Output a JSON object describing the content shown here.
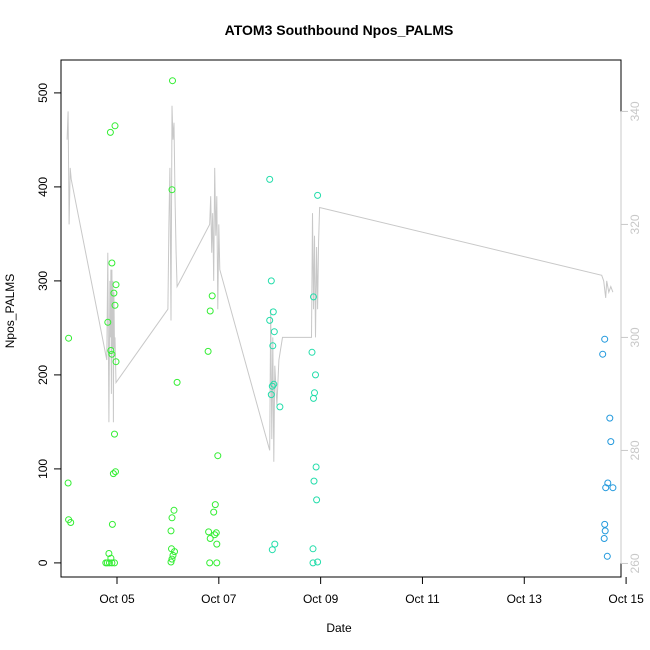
{
  "chart_data": {
    "type": "scatter",
    "title": "ATOM3 Southbound Npos_PALMS",
    "xlabel": "Date",
    "ylabel": "Npos_PALMS",
    "xlim": [
      3.9,
      14.9
    ],
    "ylim": [
      -15,
      535
    ],
    "y2lim": [
      257.6,
      349.1
    ],
    "x_ticks": [
      {
        "v": 5,
        "label": "Oct 05"
      },
      {
        "v": 7,
        "label": "Oct 07"
      },
      {
        "v": 9,
        "label": "Oct 09"
      },
      {
        "v": 11,
        "label": "Oct 11"
      },
      {
        "v": 13,
        "label": "Oct 13"
      },
      {
        "v": 15,
        "label": "Oct 15"
      }
    ],
    "y_ticks": [
      0,
      100,
      200,
      300,
      400,
      500
    ],
    "y2_ticks": [
      260,
      280,
      300,
      320,
      340
    ],
    "colors": {
      "points_green": "#33ee33",
      "points_teal": "#22ddaa",
      "points_blue": "#2299dd",
      "line": "#c8c8c8",
      "right_axis": "#c8c8c8"
    },
    "series": [
      {
        "color_key": "points_green",
        "points": [
          [
            4.05,
            239
          ],
          [
            4.04,
            85
          ],
          [
            4.05,
            46
          ],
          [
            4.09,
            43
          ],
          [
            4.78,
            0
          ],
          [
            4.81,
            0
          ],
          [
            4.84,
            10
          ],
          [
            4.85,
            0
          ],
          [
            4.88,
            5
          ],
          [
            4.9,
            0
          ],
          [
            4.95,
            0
          ],
          [
            4.87,
            458
          ],
          [
            4.96,
            465
          ],
          [
            4.9,
            319
          ],
          [
            4.98,
            296
          ],
          [
            4.94,
            287
          ],
          [
            4.96,
            274
          ],
          [
            4.82,
            256
          ],
          [
            4.88,
            226
          ],
          [
            4.9,
            222
          ],
          [
            4.98,
            214
          ],
          [
            4.95,
            137
          ],
          [
            4.97,
            97
          ],
          [
            4.93,
            95
          ],
          [
            4.91,
            41
          ],
          [
            6.08,
            397
          ],
          [
            6.09,
            513
          ],
          [
            6.18,
            192
          ],
          [
            6.12,
            56
          ],
          [
            6.08,
            48
          ],
          [
            6.06,
            34
          ],
          [
            6.07,
            15
          ],
          [
            6.13,
            12
          ],
          [
            6.1,
            8
          ],
          [
            6.08,
            4
          ],
          [
            6.06,
            1
          ],
          [
            6.87,
            284
          ],
          [
            6.83,
            268
          ],
          [
            6.79,
            225
          ],
          [
            6.98,
            114
          ],
          [
            6.93,
            62
          ],
          [
            6.9,
            54
          ],
          [
            6.8,
            33
          ],
          [
            6.83,
            26
          ],
          [
            6.92,
            30
          ],
          [
            6.95,
            32
          ],
          [
            6.96,
            20
          ],
          [
            6.82,
            0
          ],
          [
            6.96,
            0
          ]
        ]
      },
      {
        "color_key": "points_teal",
        "points": [
          [
            8.0,
            408
          ],
          [
            8.03,
            300
          ],
          [
            8.0,
            258
          ],
          [
            8.07,
            267
          ],
          [
            8.09,
            246
          ],
          [
            8.06,
            231
          ],
          [
            8.08,
            190
          ],
          [
            8.05,
            188
          ],
          [
            8.03,
            179
          ],
          [
            8.2,
            166
          ],
          [
            8.1,
            20
          ],
          [
            8.05,
            14
          ],
          [
            8.94,
            391
          ],
          [
            8.86,
            283
          ],
          [
            8.83,
            224
          ],
          [
            8.9,
            200
          ],
          [
            8.88,
            181
          ],
          [
            8.86,
            175
          ],
          [
            8.91,
            102
          ],
          [
            8.87,
            87
          ],
          [
            8.92,
            67
          ],
          [
            8.85,
            15
          ],
          [
            8.85,
            0
          ],
          [
            8.94,
            1
          ]
        ]
      },
      {
        "color_key": "points_blue",
        "points": [
          [
            14.58,
            238
          ],
          [
            14.54,
            222
          ],
          [
            14.68,
            154
          ],
          [
            14.7,
            129
          ],
          [
            14.64,
            85
          ],
          [
            14.6,
            80
          ],
          [
            14.74,
            80
          ],
          [
            14.58,
            41
          ],
          [
            14.59,
            34
          ],
          [
            14.57,
            26
          ],
          [
            14.63,
            7
          ]
        ]
      }
    ],
    "line_series": {
      "color_key": "line",
      "axis": "right",
      "points": [
        [
          4.02,
          335
        ],
        [
          4.04,
          340
        ],
        [
          4.06,
          320
        ],
        [
          4.08,
          330
        ],
        [
          4.1,
          328
        ],
        [
          4.8,
          296
        ],
        [
          4.82,
          315
        ],
        [
          4.84,
          285
        ],
        [
          4.86,
          310
        ],
        [
          4.87,
          300
        ],
        [
          4.88,
          312
        ],
        [
          4.89,
          290
        ],
        [
          4.9,
          312
        ],
        [
          4.91,
          298
        ],
        [
          4.92,
          310
        ],
        [
          4.93,
          285
        ],
        [
          4.94,
          308
        ],
        [
          4.95,
          298
        ],
        [
          4.96,
          300
        ],
        [
          4.98,
          292
        ],
        [
          6.0,
          305
        ],
        [
          6.02,
          320
        ],
        [
          6.04,
          330
        ],
        [
          6.06,
          303
        ],
        [
          6.08,
          341
        ],
        [
          6.1,
          335
        ],
        [
          6.12,
          338
        ],
        [
          6.14,
          325
        ],
        [
          6.16,
          315
        ],
        [
          6.18,
          309
        ],
        [
          6.82,
          320
        ],
        [
          6.84,
          325
        ],
        [
          6.86,
          315
        ],
        [
          6.88,
          322
        ],
        [
          6.9,
          310
        ],
        [
          6.92,
          330
        ],
        [
          6.94,
          318
        ],
        [
          6.96,
          325
        ],
        [
          6.98,
          305
        ],
        [
          7.0,
          320
        ],
        [
          7.02,
          312
        ],
        [
          8.0,
          280
        ],
        [
          8.02,
          305
        ],
        [
          8.04,
          282
        ],
        [
          8.06,
          300
        ],
        [
          8.08,
          278
        ],
        [
          8.1,
          295
        ],
        [
          8.14,
          288
        ],
        [
          8.18,
          296
        ],
        [
          8.25,
          300
        ],
        [
          8.82,
          300
        ],
        [
          8.84,
          322
        ],
        [
          8.86,
          305
        ],
        [
          8.88,
          318
        ],
        [
          8.9,
          300
        ],
        [
          8.92,
          316
        ],
        [
          8.94,
          305
        ],
        [
          8.96,
          317
        ],
        [
          8.98,
          323
        ],
        [
          14.52,
          311
        ],
        [
          14.56,
          310
        ],
        [
          14.6,
          307
        ],
        [
          14.62,
          310
        ],
        [
          14.66,
          308
        ],
        [
          14.7,
          309
        ],
        [
          14.74,
          308
        ]
      ]
    }
  }
}
